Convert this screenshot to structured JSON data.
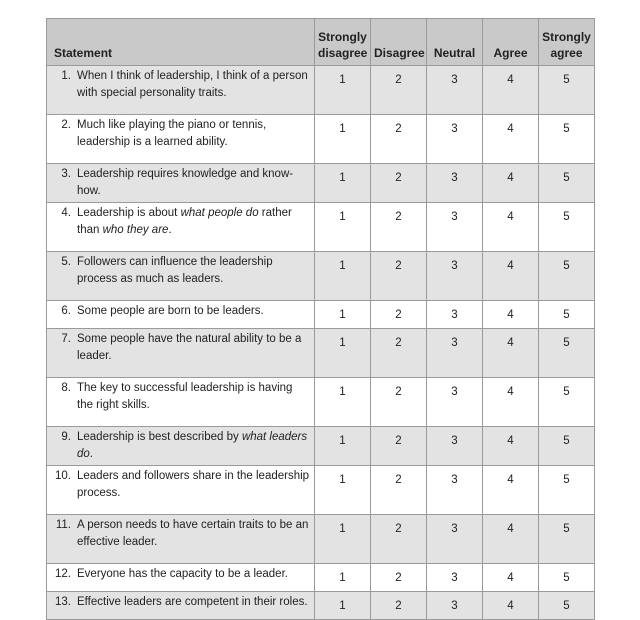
{
  "table": {
    "headers": {
      "statement": "Statement",
      "strongly_disagree_1": "Strongly",
      "strongly_disagree_2": "disagree",
      "disagree": "Disagree",
      "neutral": "Neutral",
      "agree": "Agree",
      "strongly_agree_1": "Strongly",
      "strongly_agree_2": "agree"
    },
    "rows": [
      {
        "num": "1.",
        "text": [
          {
            "t": "When I think of leadership, I think of a person with special personality traits."
          }
        ],
        "scale": [
          "1",
          "2",
          "3",
          "4",
          "5"
        ]
      },
      {
        "num": "2.",
        "text": [
          {
            "t": "Much like playing the piano or tennis, leadership is a learned ability."
          }
        ],
        "scale": [
          "1",
          "2",
          "3",
          "4",
          "5"
        ]
      },
      {
        "num": "3.",
        "text": [
          {
            "t": "Leadership requires knowledge and know-how."
          }
        ],
        "scale": [
          "1",
          "2",
          "3",
          "4",
          "5"
        ]
      },
      {
        "num": "4.",
        "text": [
          {
            "t": "Leadership is about "
          },
          {
            "t": "what people do",
            "i": true
          },
          {
            "t": " rather than "
          },
          {
            "t": "who they are",
            "i": true
          },
          {
            "t": "."
          }
        ],
        "scale": [
          "1",
          "2",
          "3",
          "4",
          "5"
        ]
      },
      {
        "num": "5.",
        "text": [
          {
            "t": "Followers can influence the leadership process as much as leaders."
          }
        ],
        "scale": [
          "1",
          "2",
          "3",
          "4",
          "5"
        ]
      },
      {
        "num": "6.",
        "text": [
          {
            "t": "Some people are born to be leaders."
          }
        ],
        "scale": [
          "1",
          "2",
          "3",
          "4",
          "5"
        ]
      },
      {
        "num": "7.",
        "text": [
          {
            "t": "Some people have the natural ability to be a leader."
          }
        ],
        "scale": [
          "1",
          "2",
          "3",
          "4",
          "5"
        ]
      },
      {
        "num": "8.",
        "text": [
          {
            "t": "The key to successful leadership is having the right skills."
          }
        ],
        "scale": [
          "1",
          "2",
          "3",
          "4",
          "5"
        ]
      },
      {
        "num": "9.",
        "text": [
          {
            "t": "Leadership is best described by "
          },
          {
            "t": "what leaders do",
            "i": true
          },
          {
            "t": "."
          }
        ],
        "scale": [
          "1",
          "2",
          "3",
          "4",
          "5"
        ]
      },
      {
        "num": "10.",
        "text": [
          {
            "t": "Leaders and followers share in the leadership process."
          }
        ],
        "scale": [
          "1",
          "2",
          "3",
          "4",
          "5"
        ]
      },
      {
        "num": "11.",
        "text": [
          {
            "t": "A person needs to have certain traits to be an effective leader."
          }
        ],
        "scale": [
          "1",
          "2",
          "3",
          "4",
          "5"
        ]
      },
      {
        "num": "12.",
        "text": [
          {
            "t": "Everyone has the capacity to be a leader."
          }
        ],
        "scale": [
          "1",
          "2",
          "3",
          "4",
          "5"
        ]
      },
      {
        "num": "13.",
        "text": [
          {
            "t": "Effective leaders are competent in their roles."
          }
        ],
        "scale": [
          "1",
          "2",
          "3",
          "4",
          "5"
        ]
      }
    ]
  }
}
